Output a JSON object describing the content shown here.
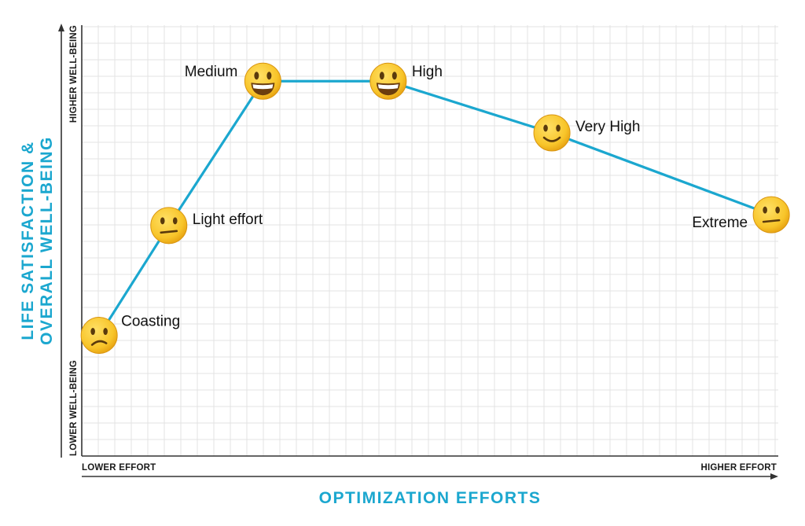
{
  "chart_data": {
    "type": "line",
    "title": "",
    "xlabel": "OPTIMIZATION EFFORTS",
    "ylabel_lines": [
      "LIFE SATISFACTION &",
      "OVERALL WELL-BEING"
    ],
    "x_low_label": "LOWER EFFORT",
    "x_high_label": "HIGHER EFFORT",
    "y_low_label": "LOWER WELL-BEING",
    "y_high_label": "HIGHER WELL-BEING",
    "grid": true,
    "xlim": [
      0,
      10
    ],
    "ylim": [
      0,
      10
    ],
    "points": [
      {
        "label": "Coasting",
        "x": 0.25,
        "y": 2.8,
        "face": "slightly-frowning-face-icon"
      },
      {
        "label": "Light effort",
        "x": 1.25,
        "y": 5.35,
        "face": "neutral-face-icon"
      },
      {
        "label": "Medium",
        "x": 2.6,
        "y": 8.7,
        "face": "grinning-face-icon"
      },
      {
        "label": "High",
        "x": 4.4,
        "y": 8.7,
        "face": "grinning-face-icon"
      },
      {
        "label": "Very High",
        "x": 6.75,
        "y": 7.5,
        "face": "slightly-smiling-face-icon"
      },
      {
        "label": "Extreme",
        "x": 9.9,
        "y": 5.6,
        "face": "neutral-face-icon"
      }
    ],
    "line_color": "#1ba7cf"
  }
}
